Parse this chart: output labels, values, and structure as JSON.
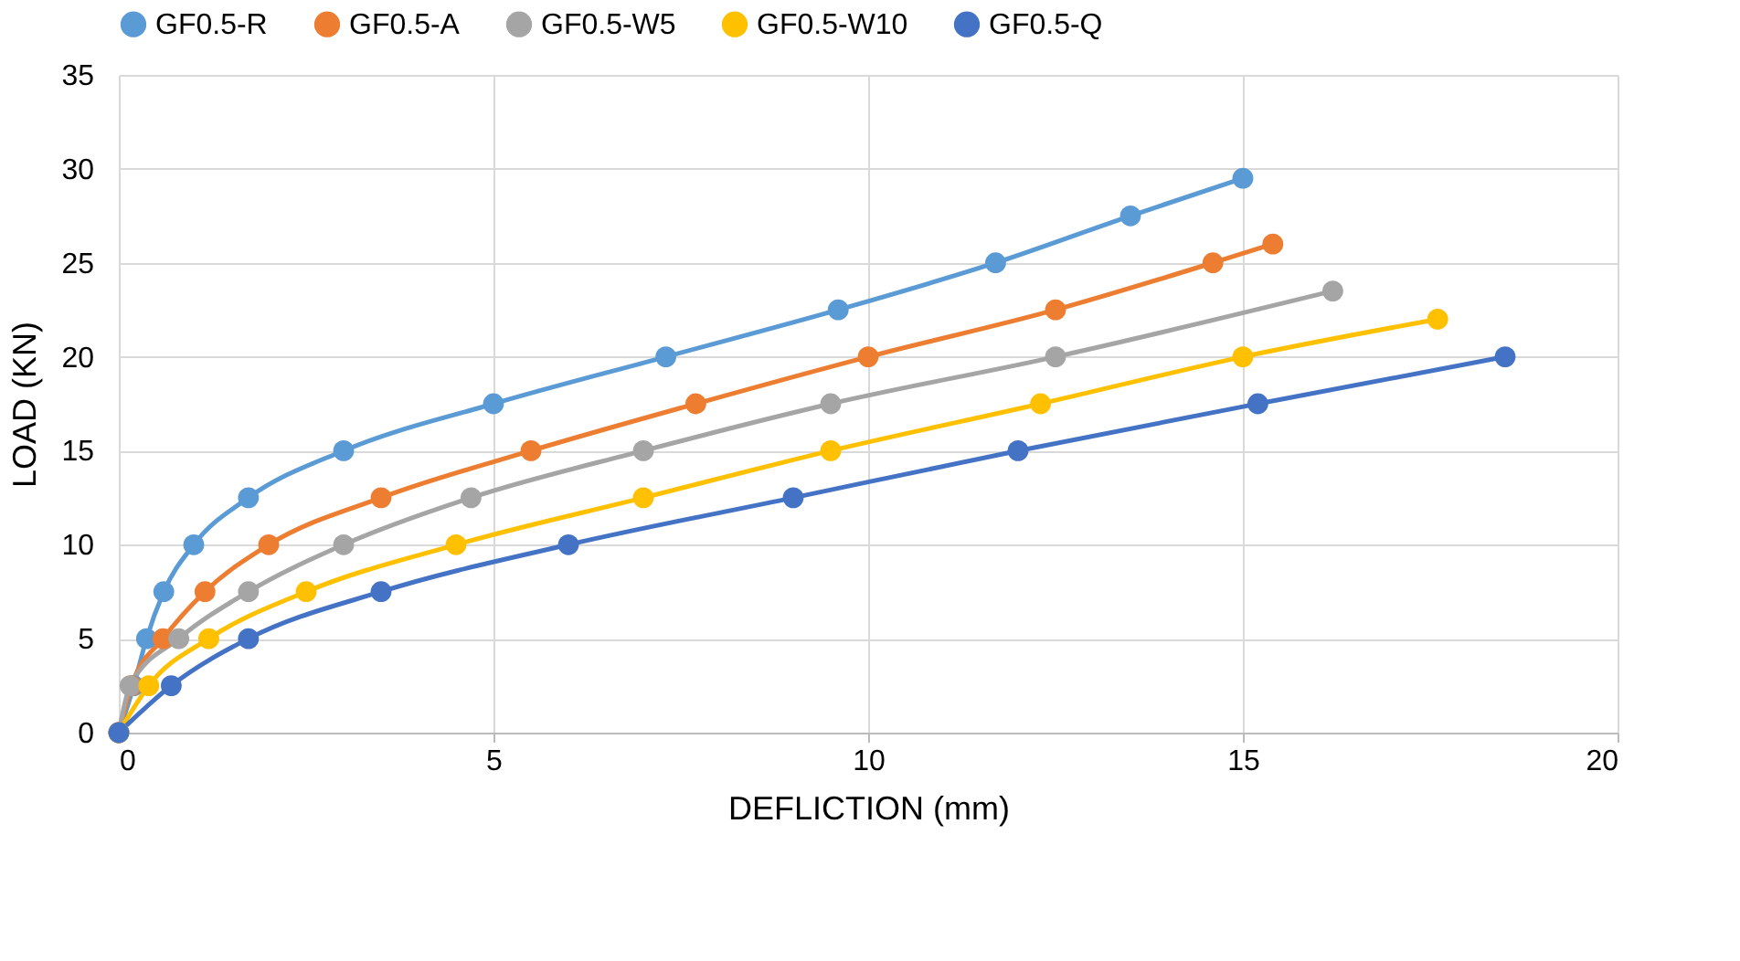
{
  "chart_data": {
    "type": "line",
    "xlabel": "DEFLICTION (mm)",
    "ylabel": "LOAD (KN)",
    "xlim": [
      0,
      20
    ],
    "xticks": [
      0,
      5,
      10,
      15,
      20
    ],
    "ylim": [
      0,
      35
    ],
    "yticks": [
      0,
      5,
      10,
      15,
      20,
      25,
      30,
      35
    ],
    "grid": true,
    "legend": "top",
    "marker": "circle",
    "line_style": "solid",
    "series": [
      {
        "name": "GF0.5-R",
        "color": "#5b9bd5",
        "x": [
          0,
          0.2,
          0.37,
          0.6,
          1.0,
          1.73,
          3.0,
          5.0,
          7.3,
          9.6,
          11.7,
          13.5,
          15.0
        ],
        "values": [
          0,
          2.5,
          5,
          7.5,
          10,
          12.5,
          15,
          17.5,
          20,
          22.5,
          25,
          27.5,
          29.5
        ]
      },
      {
        "name": "GF0.5-A",
        "color": "#ed7d31",
        "x": [
          0,
          0.17,
          0.59,
          1.15,
          2.0,
          3.5,
          5.5,
          7.7,
          10.0,
          12.5,
          14.6,
          15.4
        ],
        "values": [
          0,
          2.5,
          5,
          7.5,
          10,
          12.5,
          15,
          17.5,
          20,
          22.5,
          25,
          26
        ]
      },
      {
        "name": "GF0.5-W5",
        "color": "#a5a5a5",
        "x": [
          0,
          0.15,
          0.8,
          1.73,
          3.0,
          4.7,
          7.0,
          9.5,
          12.5,
          16.2
        ],
        "values": [
          0,
          2.5,
          5,
          7.5,
          10,
          12.5,
          15,
          17.5,
          20,
          23.5
        ]
      },
      {
        "name": "GF0.5-W10",
        "color": "#ffc000",
        "x": [
          0,
          0.4,
          1.2,
          2.5,
          4.5,
          7.0,
          9.5,
          12.3,
          15.0,
          17.6
        ],
        "values": [
          0,
          2.5,
          5,
          7.5,
          10,
          12.5,
          15,
          17.5,
          20,
          22
        ]
      },
      {
        "name": "GF0.5-Q",
        "color": "#4472c4",
        "x": [
          0,
          0.7,
          1.73,
          3.5,
          6.0,
          9.0,
          12.0,
          15.2,
          18.5
        ],
        "values": [
          0,
          2.5,
          5,
          7.5,
          10,
          12.5,
          15,
          17.5,
          20
        ]
      }
    ]
  }
}
